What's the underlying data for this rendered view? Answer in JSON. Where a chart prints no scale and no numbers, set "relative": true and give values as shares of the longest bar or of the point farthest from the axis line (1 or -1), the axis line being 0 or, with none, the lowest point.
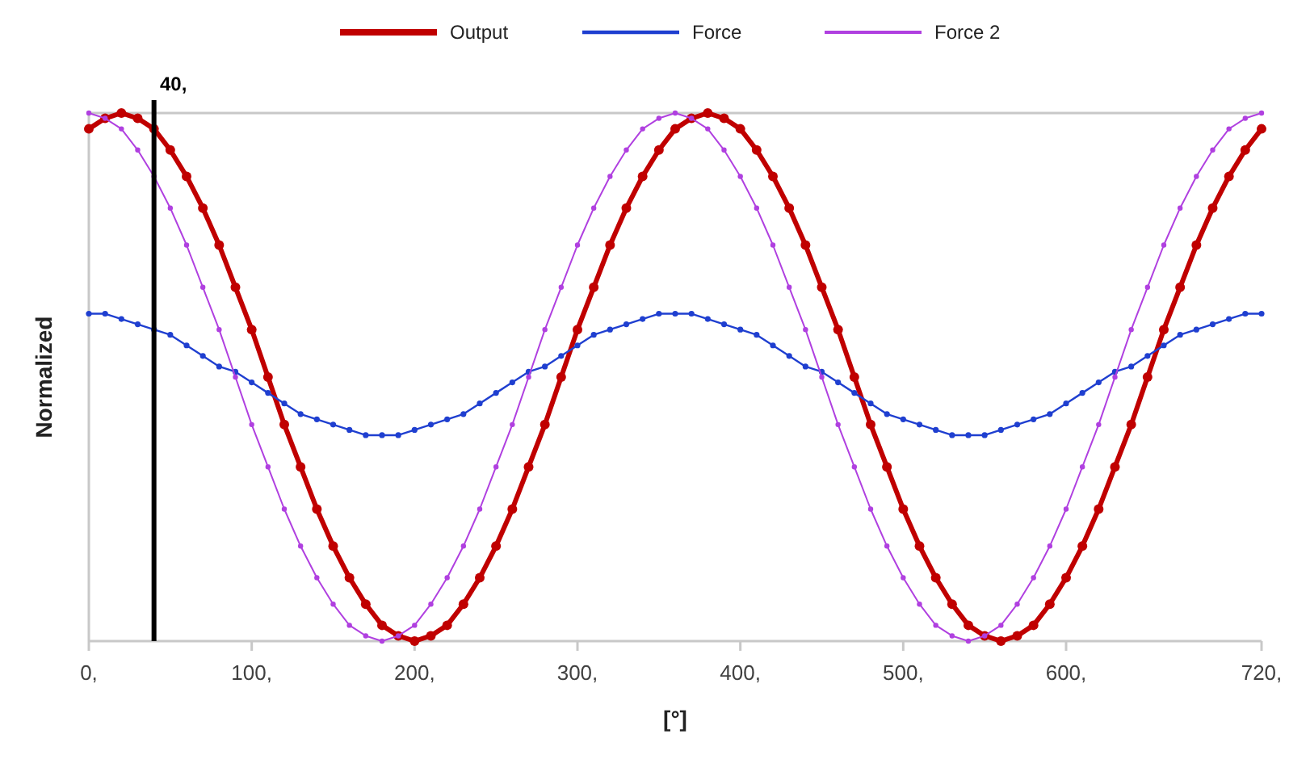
{
  "chart_data": {
    "type": "line",
    "ylabel": "Normalized",
    "xlabel": "[°]",
    "relative": true,
    "legend": "top",
    "marker": "circle",
    "line_style": "solid",
    "grid": false,
    "x": [
      0,
      10,
      20,
      30,
      40,
      50,
      60,
      70,
      80,
      90,
      100,
      110,
      120,
      130,
      140,
      150,
      160,
      170,
      180,
      190,
      200,
      210,
      220,
      230,
      240,
      250,
      260,
      270,
      280,
      290,
      300,
      310,
      320,
      330,
      340,
      350,
      360,
      370,
      380,
      390,
      400,
      410,
      420,
      430,
      440,
      450,
      460,
      470,
      480,
      490,
      500,
      510,
      520,
      530,
      540,
      550,
      560,
      570,
      580,
      590,
      600,
      610,
      620,
      630,
      640,
      650,
      660,
      670,
      680,
      690,
      700,
      710,
      720
    ],
    "xlim": [
      0,
      720
    ],
    "xticks": [
      {
        "value": 0,
        "label": "0,"
      },
      {
        "value": 100,
        "label": "100,"
      },
      {
        "value": 200,
        "label": "200,"
      },
      {
        "value": 300,
        "label": "300,"
      },
      {
        "value": 400,
        "label": "400,"
      },
      {
        "value": 500,
        "label": "500,"
      },
      {
        "value": 600,
        "label": "600,"
      },
      {
        "value": 720,
        "label": "720,"
      }
    ],
    "ref_lines": [
      {
        "axis": "x",
        "value": 40,
        "label": "40,",
        "color": "#000000"
      }
    ],
    "series": [
      {
        "name": "Output",
        "color": "#c00000",
        "values": [
          0.97,
          0.99,
          1,
          0.99,
          0.97,
          0.93,
          0.88,
          0.82,
          0.75,
          0.67,
          0.59,
          0.5,
          0.41,
          0.33,
          0.25,
          0.18,
          0.12,
          0.07,
          0.03,
          0.01,
          0,
          0.01,
          0.03,
          0.07,
          0.12,
          0.18,
          0.25,
          0.33,
          0.41,
          0.5,
          0.59,
          0.67,
          0.75,
          0.82,
          0.88,
          0.93,
          0.97,
          0.99,
          1,
          0.99,
          0.97,
          0.93,
          0.88,
          0.82,
          0.75,
          0.67,
          0.59,
          0.5,
          0.41,
          0.33,
          0.25,
          0.18,
          0.12,
          0.07,
          0.03,
          0.01,
          0,
          0.01,
          0.03,
          0.07,
          0.12,
          0.18,
          0.25,
          0.33,
          0.41,
          0.5,
          0.59,
          0.67,
          0.75,
          0.82,
          0.88,
          0.93,
          0.97
        ]
      },
      {
        "name": "Force",
        "color": "#1f3fd0",
        "values": [
          0.62,
          0.62,
          0.61,
          0.6,
          0.59,
          0.58,
          0.56,
          0.54,
          0.52,
          0.51,
          0.49,
          0.47,
          0.45,
          0.43,
          0.42,
          0.41,
          0.4,
          0.39,
          0.39,
          0.39,
          0.4,
          0.41,
          0.42,
          0.43,
          0.45,
          0.47,
          0.49,
          0.51,
          0.52,
          0.54,
          0.56,
          0.58,
          0.59,
          0.6,
          0.61,
          0.62,
          0.62,
          0.62,
          0.61,
          0.6,
          0.59,
          0.58,
          0.56,
          0.54,
          0.52,
          0.51,
          0.49,
          0.47,
          0.45,
          0.43,
          0.42,
          0.41,
          0.4,
          0.39,
          0.39,
          0.39,
          0.4,
          0.41,
          0.42,
          0.43,
          0.45,
          0.47,
          0.49,
          0.51,
          0.52,
          0.54,
          0.56,
          0.58,
          0.59,
          0.6,
          0.61,
          0.62,
          0.62
        ]
      },
      {
        "name": "Force 2",
        "color": "#b040e0",
        "values": [
          1,
          0.99,
          0.97,
          0.93,
          0.88,
          0.82,
          0.75,
          0.67,
          0.59,
          0.5,
          0.41,
          0.33,
          0.25,
          0.18,
          0.12,
          0.07,
          0.03,
          0.01,
          0,
          0.01,
          0.03,
          0.07,
          0.12,
          0.18,
          0.25,
          0.33,
          0.41,
          0.5,
          0.59,
          0.67,
          0.75,
          0.82,
          0.88,
          0.93,
          0.97,
          0.99,
          1,
          0.99,
          0.97,
          0.93,
          0.88,
          0.82,
          0.75,
          0.67,
          0.59,
          0.5,
          0.41,
          0.33,
          0.25,
          0.18,
          0.12,
          0.07,
          0.03,
          0.01,
          0,
          0.01,
          0.03,
          0.07,
          0.12,
          0.18,
          0.25,
          0.33,
          0.41,
          0.5,
          0.59,
          0.67,
          0.75,
          0.82,
          0.88,
          0.93,
          0.97,
          0.99,
          1
        ]
      }
    ]
  }
}
